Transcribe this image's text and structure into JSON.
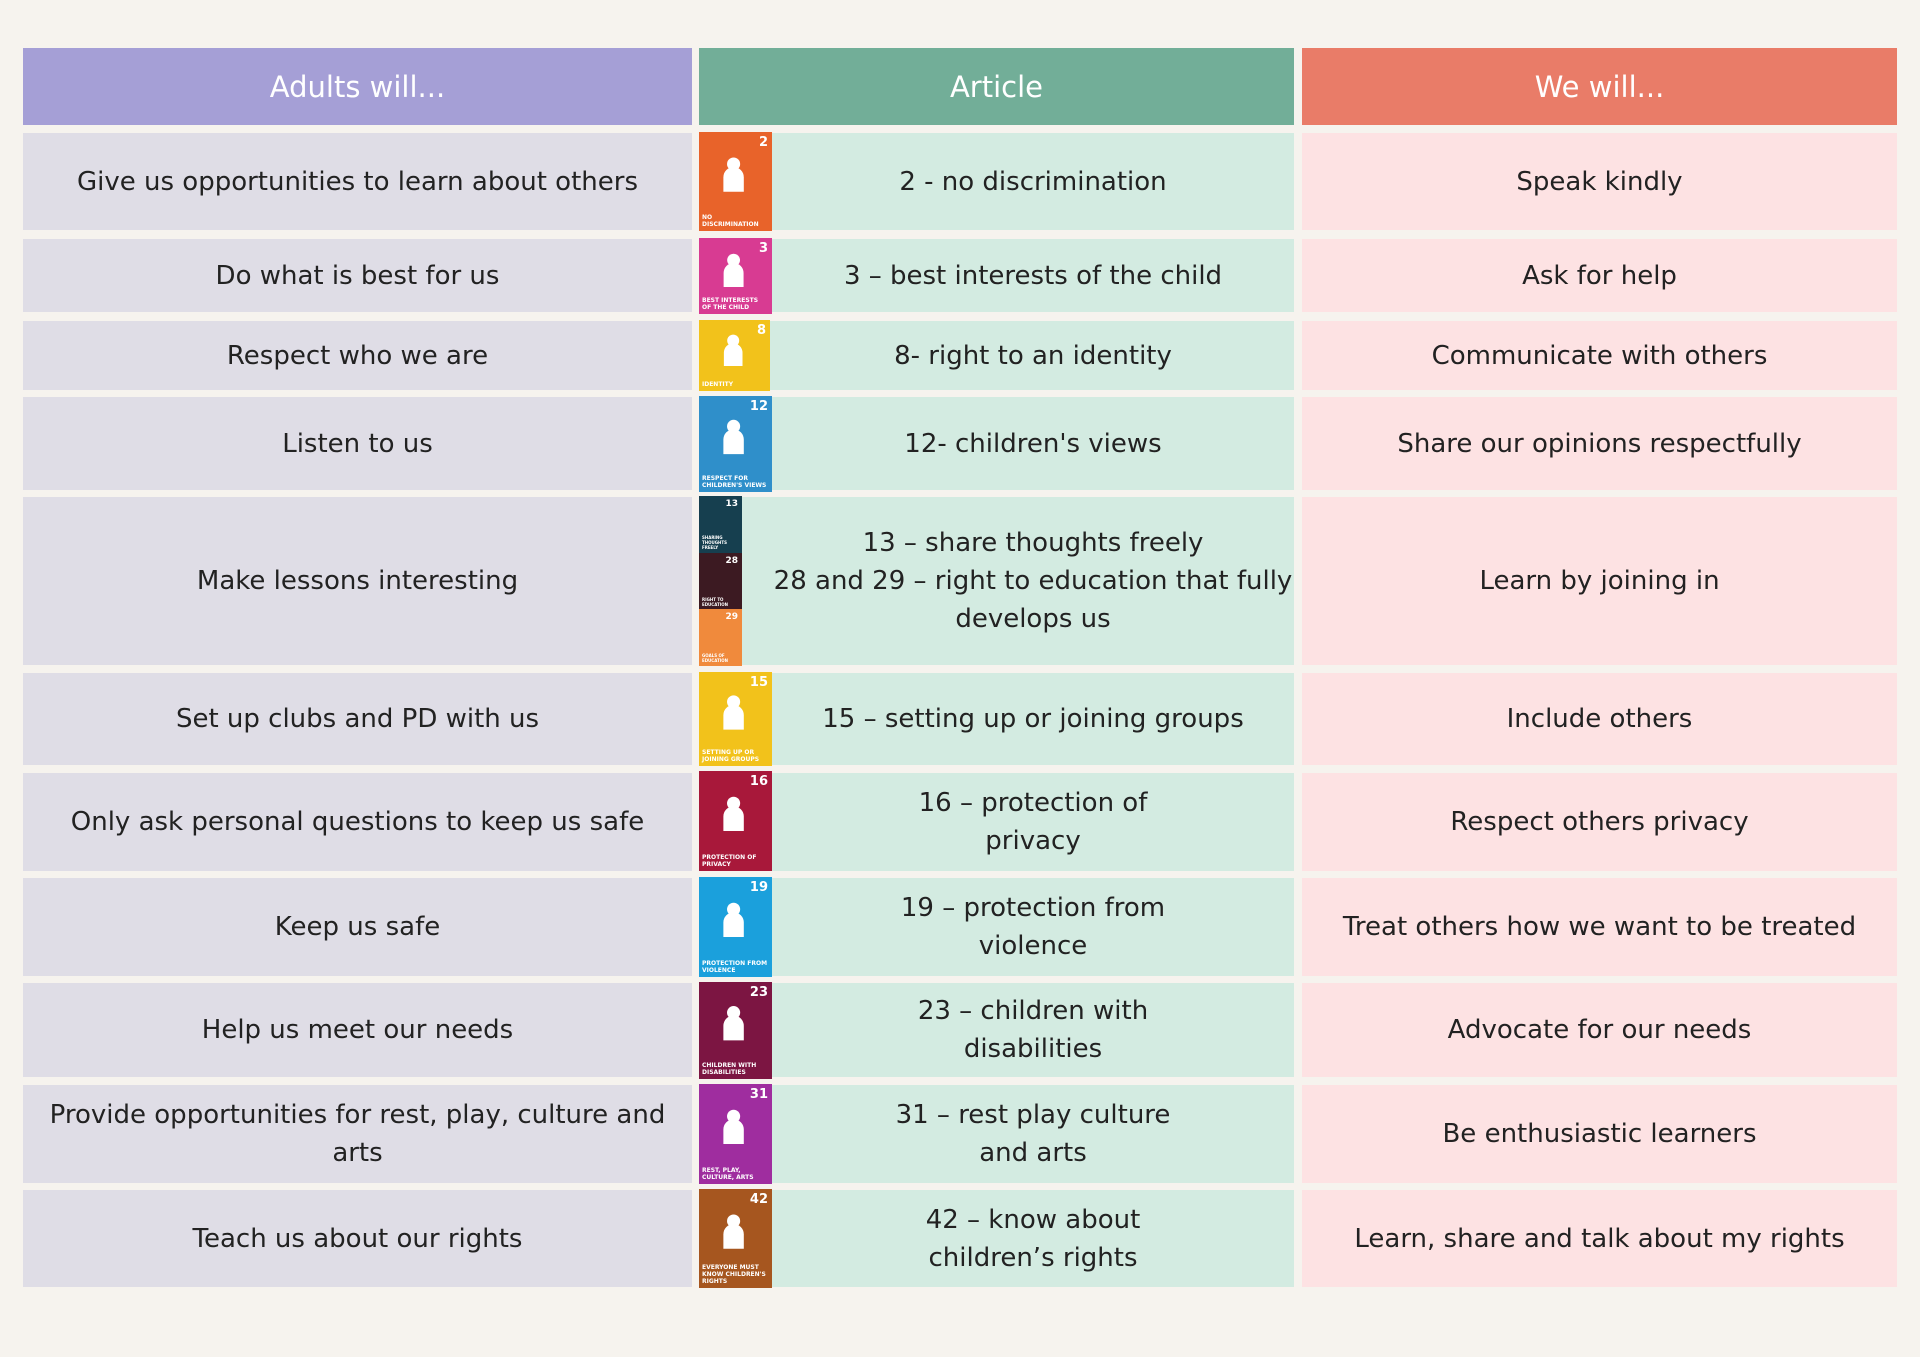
{
  "header": {
    "columns": [
      "Adults will...",
      "Article",
      "We will..."
    ]
  },
  "table": {
    "rows": [
      {
        "adults": "Give us opportunities to learn about others",
        "article": [
          "2 - no discrimination"
        ],
        "we": "Speak kindly",
        "icons": [
          {
            "number": "2",
            "label": "NO DISCRIMINATION",
            "color": "#e8632a"
          }
        ]
      },
      {
        "adults": "Do what is best for us",
        "article": [
          "3 – best interests of the child"
        ],
        "we": "Ask for help",
        "icons": [
          {
            "number": "3",
            "label": "BEST INTERESTS OF THE CHILD",
            "color": "#d83b92"
          }
        ]
      },
      {
        "adults": "Respect who we are",
        "article": [
          "8- right to an identity"
        ],
        "we": "Communicate with others",
        "icons": [
          {
            "number": "8",
            "label": "IDENTITY",
            "color": "#f2c21b"
          }
        ]
      },
      {
        "adults": "Listen to us",
        "article": [
          "12- children's views"
        ],
        "we": "Share our opinions respectfully",
        "icons": [
          {
            "number": "12",
            "label": "RESPECT FOR CHILDREN'S VIEWS",
            "color": "#2f8fca"
          }
        ]
      },
      {
        "adults": "Make lessons interesting",
        "article": [
          "13 – share thoughts freely",
          "28 and 29 – right to education that fully",
          "develops us"
        ],
        "we": "Learn by joining in",
        "icons": [
          {
            "number": "13",
            "label": "SHARING THOUGHTS FREELY",
            "color": "#163f4f"
          },
          {
            "number": "28",
            "label": "RIGHT TO EDUCATION",
            "color": "#3c1a22"
          },
          {
            "number": "29",
            "label": "GOALS OF EDUCATION",
            "color": "#f08a3c"
          }
        ]
      },
      {
        "adults": "Set up clubs and PD with us",
        "article": [
          "15 – setting up or joining groups"
        ],
        "we": "Include others",
        "icons": [
          {
            "number": "15",
            "label": "SETTING UP OR JOINING GROUPS",
            "color": "#f2c21b"
          }
        ]
      },
      {
        "adults": "Only ask personal questions to keep us safe",
        "article": [
          "16 – protection of",
          "privacy"
        ],
        "we": "Respect others privacy",
        "icons": [
          {
            "number": "16",
            "label": "PROTECTION OF PRIVACY",
            "color": "#a8183a"
          }
        ]
      },
      {
        "adults": "Keep us safe",
        "article": [
          "19 – protection from",
          "violence"
        ],
        "we": "Treat others how we want to be treated",
        "icons": [
          {
            "number": "19",
            "label": "PROTECTION FROM VIOLENCE",
            "color": "#1ba0dc"
          }
        ]
      },
      {
        "adults": "Help us meet our needs",
        "article": [
          "23 – children with",
          "disabilities"
        ],
        "we": "Advocate for our needs",
        "icons": [
          {
            "number": "23",
            "label": "CHILDREN WITH DISABILITIES",
            "color": "#7c1542"
          }
        ]
      },
      {
        "adults": "Provide opportunities for rest, play, culture and arts",
        "article": [
          "31 – rest play culture",
          "and arts"
        ],
        "we": "Be enthusiastic learners",
        "icons": [
          {
            "number": "31",
            "label": "REST, PLAY, CULTURE, ARTS",
            "color": "#9f2d9f"
          }
        ]
      },
      {
        "adults": "Teach us about our rights",
        "article": [
          "42 – know about",
          "children’s rights"
        ],
        "we": "Learn, share and talk about my rights",
        "icons": [
          {
            "number": "42",
            "label": "EVERYONE MUST KNOW CHILDREN'S RIGHTS",
            "color": "#a6561f"
          }
        ]
      }
    ]
  }
}
